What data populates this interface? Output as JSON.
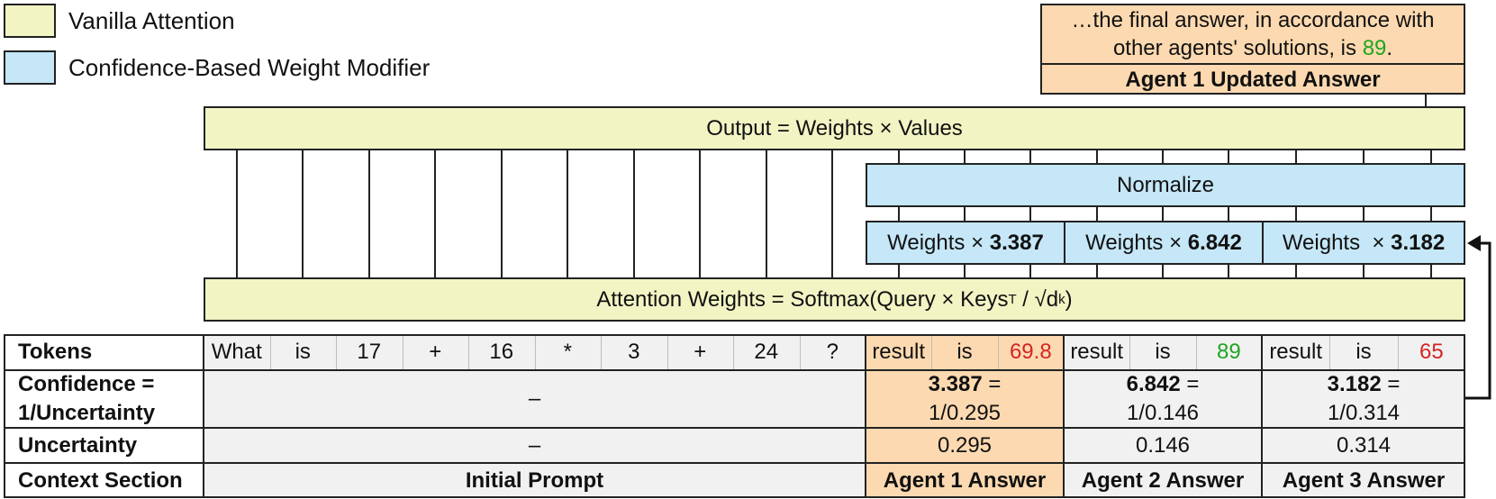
{
  "legend": [
    {
      "label": "Vanilla Attention",
      "color": "#f2f4c4"
    },
    {
      "label": "Confidence-Based Weight Modifier",
      "color": "#c5e7f7"
    }
  ],
  "agent_answer_box": {
    "text_line1": "…the final answer, in accordance with",
    "text_line2_before": "other agents' solutions, is ",
    "text_line2_value": "89",
    "text_line2_after": ".",
    "title": "Agent 1 Updated Answer"
  },
  "output_label": "Output = Weights × Values",
  "normalize_label": "Normalize",
  "weight_modifiers": [
    {
      "prefix": "Weights × ",
      "value": "3.387"
    },
    {
      "prefix": "Weights × ",
      "value": "6.842"
    },
    {
      "prefix": "Weights  × ",
      "value": "3.182"
    }
  ],
  "attention": {
    "prefix": "Attention Weights = Softmax(Query × Keys",
    "sup": "T",
    "middle": " / √d",
    "sub": "k",
    "suffix": ")"
  },
  "table": {
    "row_labels": {
      "tokens": "Tokens",
      "confidence_line1": "Confidence =",
      "confidence_line2": "1/Uncertainty",
      "uncertainty": "Uncertainty",
      "context": "Context Section"
    },
    "prompt_tokens": [
      "What",
      "is",
      "17",
      "+",
      "16",
      "*",
      "3",
      "+",
      "24",
      "?"
    ],
    "agent_tokens": [
      [
        "result",
        "is",
        "69.8"
      ],
      [
        "result",
        "is",
        "89"
      ],
      [
        "result",
        "is",
        "65"
      ]
    ],
    "prompt_confidence": "–",
    "prompt_uncertainty": "–",
    "agents": [
      {
        "confidence_value": "3.387",
        "confidence_eq": " =",
        "confidence_formula": "1/0.295",
        "uncertainty": "0.295",
        "section": "Agent 1 Answer"
      },
      {
        "confidence_value": "6.842",
        "confidence_eq": " =",
        "confidence_formula": "1/0.146",
        "uncertainty": "0.146",
        "section": "Agent 2 Answer"
      },
      {
        "confidence_value": "3.182",
        "confidence_eq": " =",
        "confidence_formula": "1/0.314",
        "uncertainty": "0.314",
        "section": "Agent 3 Answer"
      }
    ],
    "initial_prompt_label": "Initial Prompt"
  },
  "colors": {
    "yellow": "#f2f4c4",
    "blue": "#c5e7f7",
    "orange": "#fcd9b0",
    "gray": "#f1f1f1",
    "correct_answer": "#1fa51f",
    "wrong_answer": "#d62424"
  }
}
